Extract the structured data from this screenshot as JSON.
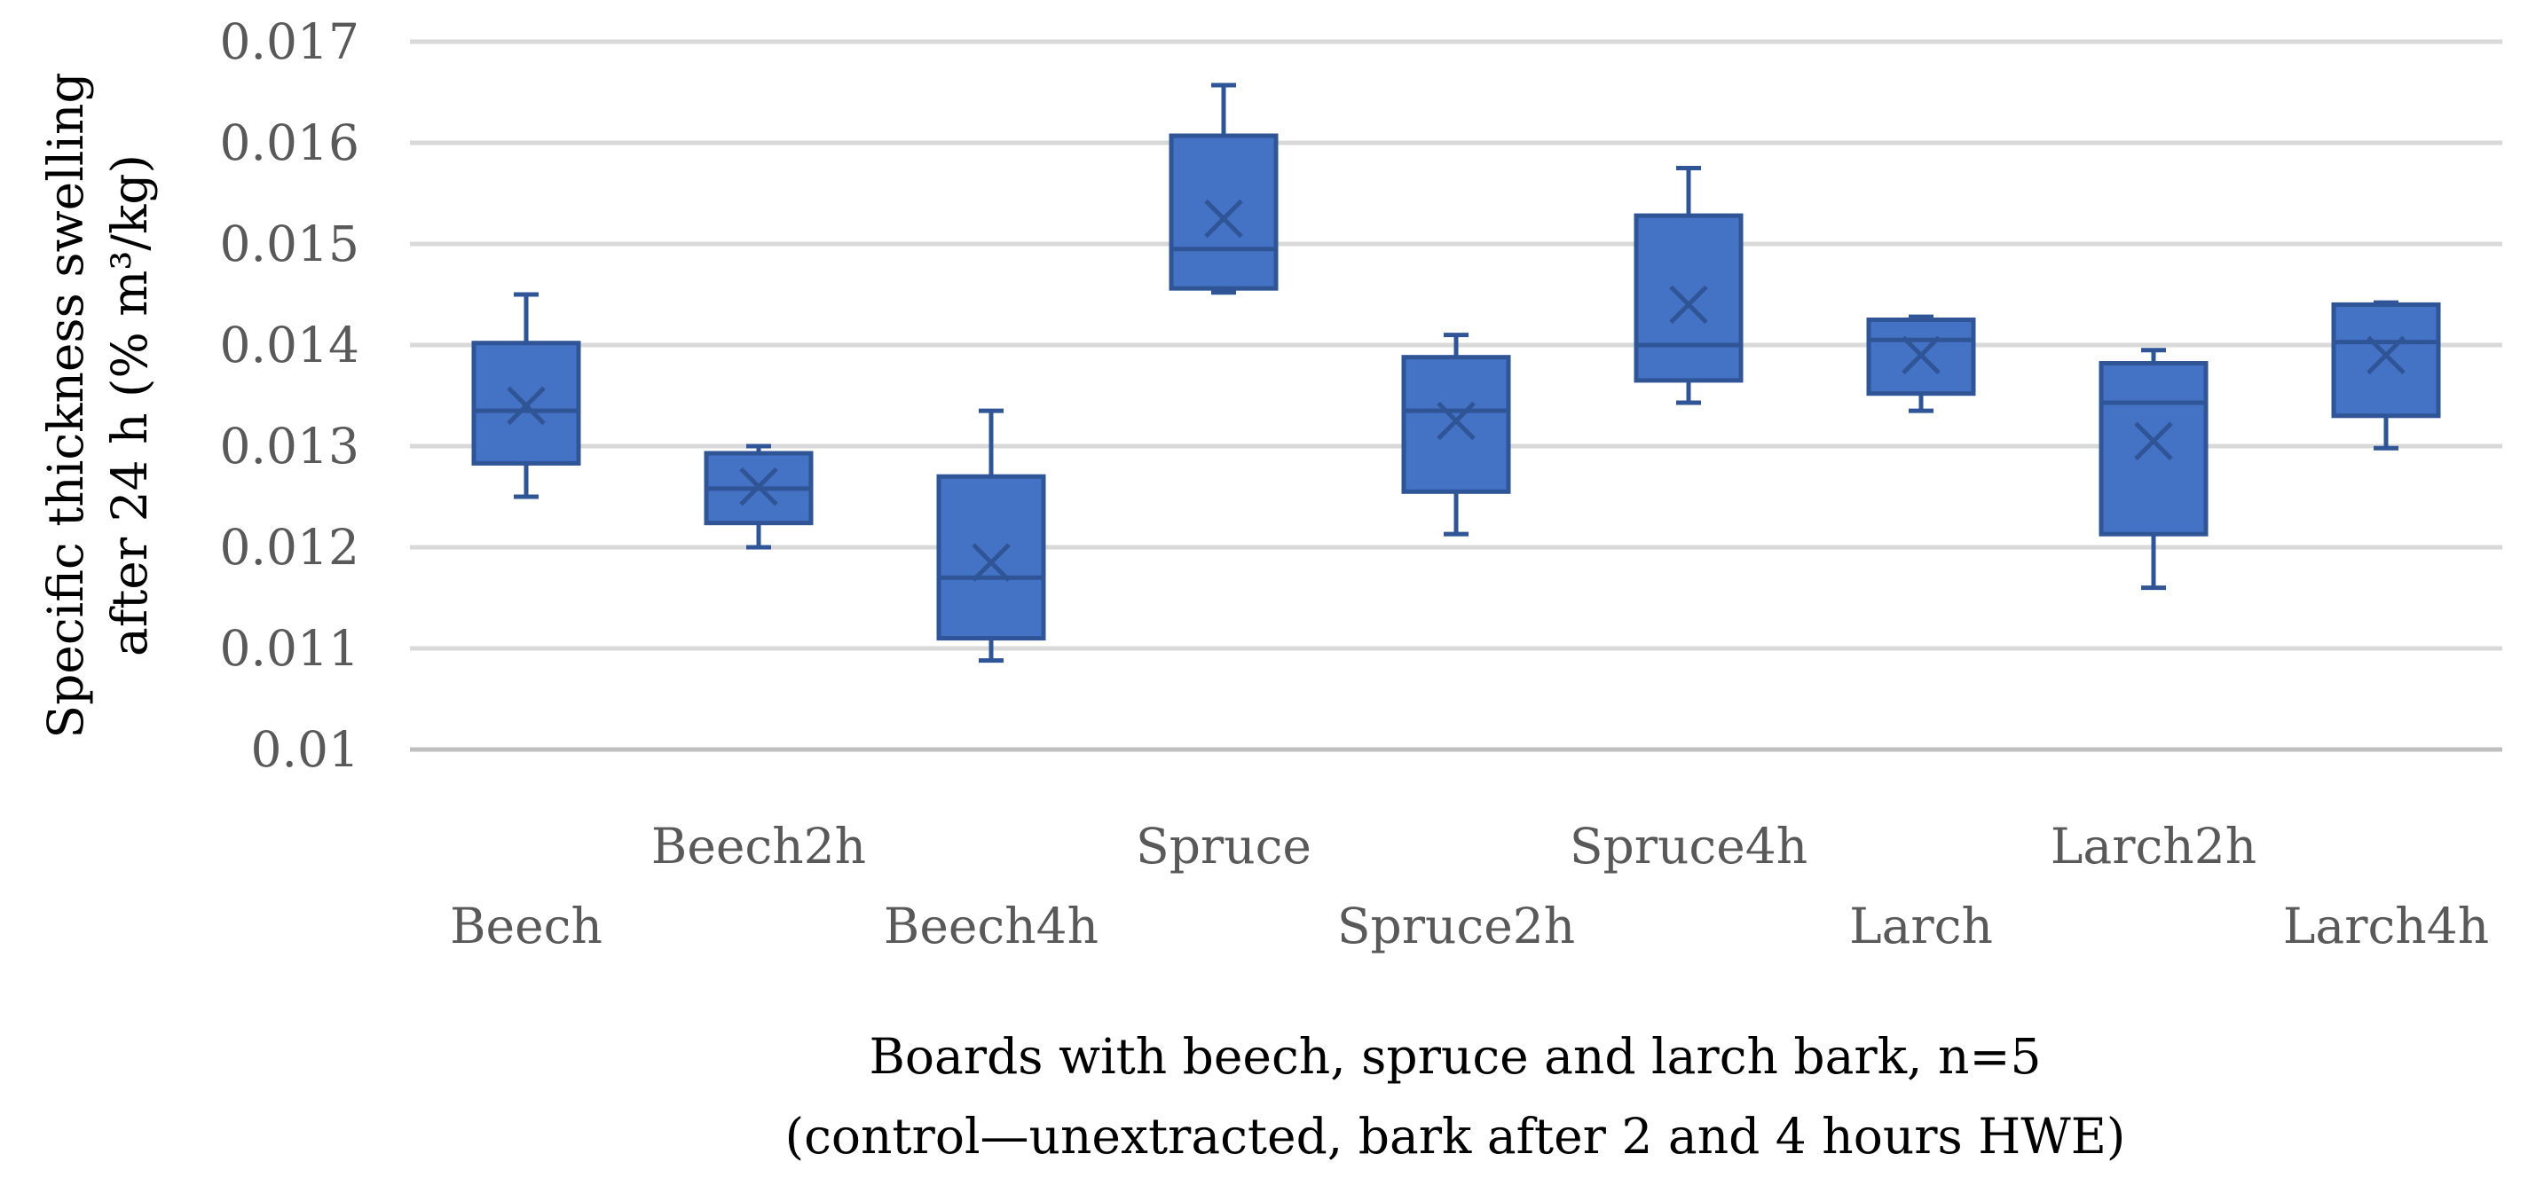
{
  "chart_data": {
    "type": "box",
    "categories": [
      "Beech",
      "Beech2h",
      "Beech4h",
      "Spruce",
      "Spruce2h",
      "Spruce4h",
      "Larch",
      "Larch2h",
      "Larch4h"
    ],
    "boxes": [
      {
        "name": "Beech",
        "min": 0.0125,
        "q1": 0.01283,
        "median": 0.01335,
        "q3": 0.01402,
        "max": 0.0145,
        "mean": 0.0134
      },
      {
        "name": "Beech2h",
        "min": 0.012,
        "q1": 0.01224,
        "median": 0.01258,
        "q3": 0.01293,
        "max": 0.013,
        "mean": 0.0126
      },
      {
        "name": "Beech4h",
        "min": 0.01088,
        "q1": 0.0111,
        "median": 0.0117,
        "q3": 0.0127,
        "max": 0.01335,
        "mean": 0.01185
      },
      {
        "name": "Spruce",
        "min": 0.01452,
        "q1": 0.01456,
        "median": 0.01495,
        "q3": 0.01607,
        "max": 0.01657,
        "mean": 0.01525
      },
      {
        "name": "Spruce2h",
        "min": 0.01213,
        "q1": 0.01255,
        "median": 0.01335,
        "q3": 0.01388,
        "max": 0.0141,
        "mean": 0.01325
      },
      {
        "name": "Spruce4h",
        "min": 0.01343,
        "q1": 0.01365,
        "median": 0.014,
        "q3": 0.01528,
        "max": 0.01575,
        "mean": 0.0144
      },
      {
        "name": "Larch",
        "min": 0.01335,
        "q1": 0.01352,
        "median": 0.01405,
        "q3": 0.01425,
        "max": 0.01428,
        "mean": 0.0139
      },
      {
        "name": "Larch2h",
        "min": 0.0116,
        "q1": 0.01213,
        "median": 0.01343,
        "q3": 0.01382,
        "max": 0.01395,
        "mean": 0.01305
      },
      {
        "name": "Larch4h",
        "min": 0.01298,
        "q1": 0.0133,
        "median": 0.01403,
        "q3": 0.0144,
        "max": 0.01442,
        "mean": 0.0139
      }
    ],
    "ylim": [
      0.01,
      0.017
    ],
    "yticks": [
      "0.01",
      "0.011",
      "0.012",
      "0.013",
      "0.014",
      "0.015",
      "0.016",
      "0.017"
    ],
    "ylabel_line1": "Specific thickness swelling",
    "ylabel_line2": "after 24 h (% m³/kg)",
    "xlabel_line1": "Boards with beech, spruce and larch bark, n=5",
    "xlabel_line2": "(control—unextracted, bark after 2 and 4 hours HWE)",
    "grid": true,
    "colors": {
      "box_fill": "#4472C4",
      "box_edge": "#2F5597",
      "grid": "#D9D9D9"
    }
  }
}
